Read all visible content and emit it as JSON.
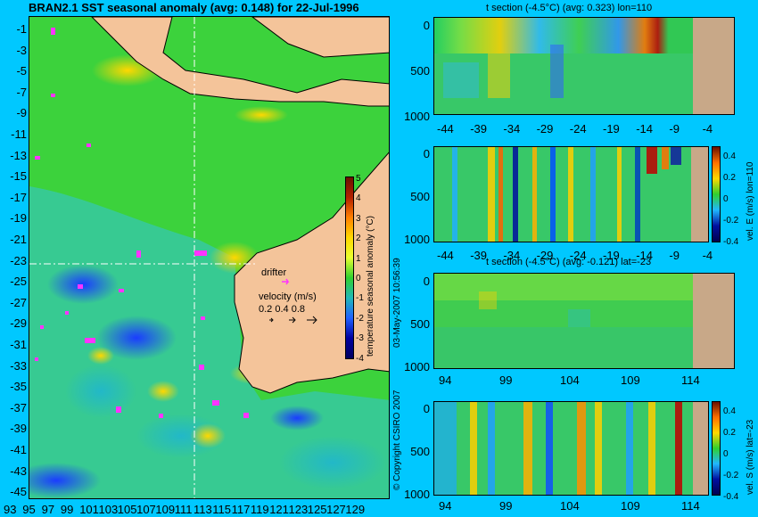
{
  "title": "BRAN2.1 SST seasonal anomaly (avg: 0.148) for 22-Jul-1996",
  "map": {
    "lat_ticks": [
      "-1",
      "-3",
      "-5",
      "-7",
      "-9",
      "-11",
      "-13",
      "-15",
      "-17",
      "-19",
      "-21",
      "-23",
      "-25",
      "-27",
      "-29",
      "-31",
      "-33",
      "-35",
      "-37",
      "-39",
      "-41",
      "-43",
      "-45"
    ],
    "lon_ticks": [
      "93",
      "95",
      "97",
      "99",
      "101",
      "103",
      "105",
      "107",
      "109",
      "111",
      "113",
      "115",
      "117",
      "119",
      "121",
      "123",
      "125",
      "127",
      "129"
    ],
    "drifter_label": "drifter",
    "velocity_label": "velocity (m/s)",
    "velocity_values": "0.2  0.4  0.8",
    "colorbar_label": "temperature seasonal anomaly (°C)",
    "colorbar_ticks": [
      "5",
      "4",
      "3",
      "2",
      "1",
      "0",
      "-1",
      "-2",
      "-3",
      "-4"
    ],
    "colors": {
      "ocean": "#3cd23c",
      "land": "#f4c49a"
    }
  },
  "timestamp": "03-May-2007 10:56:39",
  "copyright": "© Copyright CSIRO 2007",
  "panels": {
    "p1": {
      "title": "t section (-4.5°C) (avg: 0.323) lon=110",
      "x_ticks": [
        "-44",
        "-39",
        "-34",
        "-29",
        "-24",
        "-19",
        "-14",
        "-9",
        "-4"
      ],
      "y_ticks": [
        "0",
        "500",
        "1000"
      ]
    },
    "p2": {
      "x_ticks": [
        "-44",
        "-39",
        "-34",
        "-29",
        "-24",
        "-19",
        "-14",
        "-9",
        "-4"
      ],
      "y_ticks": [
        "0",
        "500",
        "1000"
      ],
      "colorbar_label": "vel. E (m/s) lon=110",
      "colorbar_ticks": [
        "0.4",
        "0.2",
        "0",
        "-0.2",
        "-0.4"
      ]
    },
    "p3": {
      "title": "t section (-4.5°C) (avg: -0.121) lat=-23",
      "x_ticks": [
        "94",
        "99",
        "104",
        "109",
        "114"
      ],
      "y_ticks": [
        "0",
        "500",
        "1000"
      ]
    },
    "p4": {
      "x_ticks": [
        "94",
        "99",
        "104",
        "109",
        "114"
      ],
      "y_ticks": [
        "0",
        "500",
        "1000"
      ],
      "colorbar_label": "vel. S (m/s) lat=-23",
      "colorbar_ticks": [
        "0.4",
        "0.2",
        "0",
        "-0.2",
        "-0.4"
      ]
    }
  }
}
